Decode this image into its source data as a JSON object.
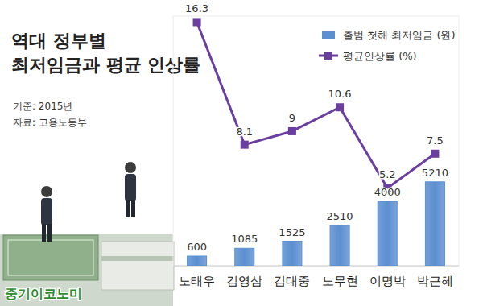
{
  "chart_data": {
    "type": "bar",
    "title": "역대 정부별\n최저임금과 평균 인상률",
    "annotations": [
      "기준: 2015년",
      "자료: 고용노동부",
      "중기이코노미"
    ],
    "categories": [
      "노태우",
      "김영삼",
      "김대중",
      "노무현",
      "이명박",
      "박근혜"
    ],
    "series": [
      {
        "name": "출범 첫해 최저임금 (원)",
        "type": "bar",
        "color": "#5b8fd0",
        "values": [
          600,
          1085,
          1525,
          2510,
          4000,
          5210
        ]
      },
      {
        "name": "평균인상률 (%)",
        "type": "line",
        "axis": "y2",
        "color": "#6b3fa0",
        "marker": "square",
        "values": [
          16.3,
          8.1,
          9,
          10.6,
          5.2,
          7.5
        ]
      }
    ],
    "ylim": [
      0,
      15500
    ],
    "y2lim": [
      0,
      16.7
    ],
    "grid": false,
    "legend": "top-right",
    "data_labels": true,
    "tick_labels": false
  }
}
